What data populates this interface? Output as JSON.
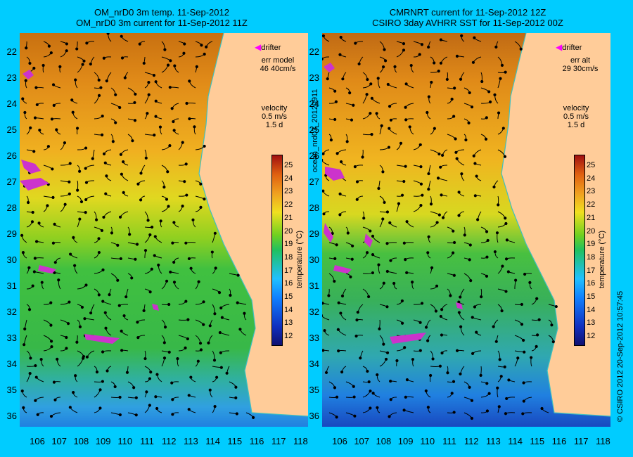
{
  "left": {
    "title1": "OM_nrD0 3m temp. 11-Sep-2012",
    "title2": "OM_nrD0 3m current for 11-Sep-2012 11Z",
    "err_label": "err model",
    "err_value": "46 40cm/s",
    "velocity": "velocity",
    "velocity_scale": "0.5 m/s",
    "velocity_time": "1.5 d"
  },
  "right": {
    "title1": "CMRNRT current for 11-Sep-2012 12Z",
    "title2": "CSIRO 3day AVHRR SST for 11-Sep-2012 00Z",
    "err_label": "err alt",
    "err_value": "29 30cm/s",
    "velocity": "velocity",
    "velocity_scale": "0.5 m/s",
    "velocity_time": "1.5 d"
  },
  "drifter_label": "drifter",
  "lat_ticks": [
    "22",
    "23",
    "24",
    "25",
    "26",
    "27",
    "28",
    "29",
    "30",
    "31",
    "32",
    "33",
    "34",
    "35",
    "36"
  ],
  "lon_ticks": [
    "106",
    "107",
    "108",
    "109",
    "110",
    "111",
    "112",
    "113",
    "114",
    "115",
    "116",
    "117",
    "118"
  ],
  "colorbar_ticks": [
    "25",
    "24",
    "23",
    "22",
    "21",
    "20",
    "19",
    "18",
    "17",
    "16",
    "15",
    "14",
    "13",
    "12"
  ],
  "colorbar_label": "temperature (°C)",
  "side_label_mid": "ocean_nrd03_20120911",
  "side_label_right": "© CSIRO 2012   20-Sep-2012 10:57:45",
  "colors": {
    "background": "#00ccff",
    "land": "#ffcc99",
    "drifter": "#ff00ff",
    "coast": "#40c0c0"
  }
}
